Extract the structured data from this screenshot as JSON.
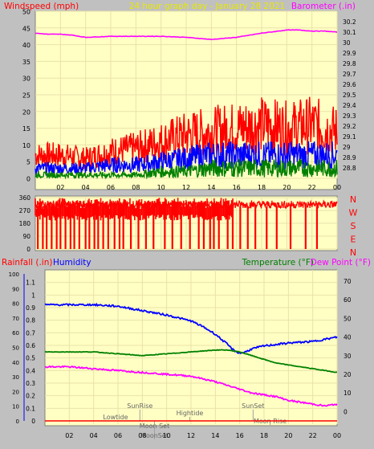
{
  "colors": {
    "background": "#c0c0c0",
    "plot_bg": "#ffffc4",
    "grid": "#e9e2a8",
    "wind": "#ff0000",
    "wind_avg": "#0000ff",
    "wind_low": "#008000",
    "barometer": "#ff00ff",
    "direction": "#ff0000",
    "rainfall": "#ff0000",
    "humidity": "#0000ff",
    "temperature": "#008000",
    "dewpoint": "#ff00ff",
    "tick_text": "#000000"
  },
  "header": {
    "left_label": "Windspeed (mph)",
    "center_label": "24 hour graph day - January 28 2021",
    "right_label": "Barometer (.in)"
  },
  "x_ticks": [
    "02",
    "04",
    "06",
    "08",
    "10",
    "12",
    "14",
    "16",
    "18",
    "20",
    "22",
    "00"
  ],
  "chart_data": [
    {
      "type": "line",
      "title": "24 hour graph day - January 28 2021",
      "xlabel": "",
      "x_range": [
        0,
        24
      ],
      "y_left": {
        "label": "Windspeed (mph)",
        "range": [
          0,
          50
        ],
        "ticks": [
          0,
          5,
          10,
          15,
          20,
          25,
          30,
          35,
          40,
          45,
          50
        ]
      },
      "y_right": {
        "label": "Barometer (.in)",
        "range": [
          28.7,
          30.3
        ],
        "ticks": [
          28.8,
          28.9,
          29,
          29.1,
          29.2,
          29.3,
          29.4,
          29.5,
          29.6,
          29.7,
          29.8,
          29.9,
          30,
          30.1,
          30.2
        ]
      },
      "series": [
        {
          "name": "Windspeed gust",
          "axis": "left",
          "x": [
            0,
            2,
            4,
            6,
            8,
            10,
            12,
            14,
            16,
            18,
            20,
            22,
            24
          ],
          "y": [
            7,
            7,
            6,
            8,
            9,
            11,
            13,
            14,
            15,
            16,
            15,
            16,
            14
          ]
        },
        {
          "name": "Windspeed average",
          "axis": "left",
          "x": [
            0,
            2,
            4,
            6,
            8,
            10,
            12,
            14,
            16,
            18,
            20,
            22,
            24
          ],
          "y": [
            3,
            3,
            3,
            4,
            4,
            5,
            6,
            7,
            7,
            7,
            7,
            7,
            7
          ]
        },
        {
          "name": "Windspeed low",
          "axis": "left",
          "x": [
            0,
            2,
            4,
            6,
            8,
            10,
            12,
            14,
            16,
            18,
            20,
            22,
            24
          ],
          "y": [
            1,
            1,
            1,
            1,
            1,
            2,
            2,
            3,
            3,
            3,
            3,
            3,
            3
          ]
        },
        {
          "name": "Barometer",
          "axis": "right",
          "x": [
            0,
            1,
            2,
            3,
            4,
            6,
            8,
            10,
            12,
            14,
            16,
            18,
            20,
            21,
            22,
            23,
            24
          ],
          "y": [
            30.09,
            30.08,
            30.08,
            30.07,
            30.05,
            30.06,
            30.06,
            30.06,
            30.05,
            30.03,
            30.05,
            30.09,
            30.12,
            30.12,
            30.11,
            30.11,
            30.1
          ]
        }
      ]
    },
    {
      "type": "scatter",
      "title": "",
      "xlabel": "",
      "x_range": [
        0,
        24
      ],
      "y_left": {
        "label": "",
        "range": [
          0,
          360
        ],
        "ticks": [
          0,
          90,
          180,
          270,
          360
        ]
      },
      "y_right_labels": [
        "N",
        "W",
        "S",
        "E",
        "N"
      ],
      "series": [
        {
          "name": "Wind direction",
          "axis": "left",
          "base": 300,
          "drops_x": [
            0.2,
            0.6,
            0.9,
            1.3,
            1.7,
            2.0,
            2.4,
            2.8,
            3.1,
            3.5,
            4.0,
            4.3,
            4.7,
            5.0,
            5.4,
            5.8,
            6.3,
            6.7,
            7.0,
            7.6,
            8.2,
            8.8,
            9.4,
            10.3,
            10.9,
            11.6,
            12.3,
            13.0,
            13.4,
            13.9,
            14.2,
            14.6,
            15.3,
            15.7,
            16.3,
            16.9,
            17.5,
            18.4,
            19.2,
            20.3,
            21.5,
            22.4
          ]
        }
      ]
    },
    {
      "type": "line",
      "title": "",
      "xlabel": "",
      "x_range": [
        0,
        24
      ],
      "y_left_outer": {
        "label": "Rainfall (.in)",
        "range": [
          0,
          1.2
        ],
        "ticks": [
          0,
          0.1,
          0.2,
          0.3,
          0.4,
          0.5,
          0.6,
          0.7,
          0.8,
          0.9,
          1,
          1.1
        ]
      },
      "y_left_inner": {
        "label": "Humidity",
        "range": [
          0,
          100
        ],
        "ticks": [
          0,
          10,
          20,
          30,
          40,
          50,
          60,
          70,
          80,
          90,
          100
        ]
      },
      "y_right": {
        "label_temp": "Temperature (°F)",
        "label_dew": "Dew Point (°F)",
        "range": [
          -5,
          76
        ],
        "ticks": [
          0,
          10,
          20,
          30,
          40,
          50,
          60,
          70
        ]
      },
      "series": [
        {
          "name": "Humidity",
          "axis": "inner",
          "x": [
            0,
            2,
            4,
            6,
            8,
            10,
            12,
            13,
            14,
            15,
            15.5,
            16,
            16.5,
            17,
            18,
            20,
            22,
            24
          ],
          "y": [
            79,
            79,
            79,
            78,
            75,
            72,
            68,
            64,
            59,
            52,
            48,
            46,
            47,
            49,
            51,
            53,
            54,
            57
          ]
        },
        {
          "name": "Temperature",
          "axis": "right",
          "x": [
            0,
            2,
            4,
            6,
            8,
            10,
            12,
            14,
            15,
            16,
            17,
            18,
            19,
            20,
            21,
            22,
            23,
            24
          ],
          "y": [
            32,
            32,
            32,
            31,
            30,
            31,
            32,
            33,
            33,
            32,
            30,
            28,
            26,
            25,
            24,
            23,
            22,
            21
          ]
        },
        {
          "name": "Dew Point",
          "axis": "right",
          "x": [
            0,
            2,
            4,
            6,
            8,
            10,
            12,
            14,
            15,
            16,
            17,
            18,
            19,
            20,
            21,
            22,
            23,
            24
          ],
          "y": [
            24,
            24,
            23,
            22,
            21,
            20,
            19,
            16,
            14,
            12,
            10,
            9,
            8,
            6,
            5,
            4,
            3,
            4
          ]
        },
        {
          "name": "Rainfall",
          "axis": "outer",
          "x": [
            0,
            24
          ],
          "y": [
            0,
            0
          ]
        }
      ],
      "annotations": [
        {
          "text": "Lowtide",
          "x": 5.8
        },
        {
          "text": "SunRise",
          "x": 7.8
        },
        {
          "text": "Moon Set",
          "x": 9.0
        },
        {
          "text": "Hightide",
          "x": 11.9
        },
        {
          "text": "SunSet",
          "x": 17.1
        },
        {
          "text": "Moon Rise",
          "x": 18.5
        },
        {
          "text": "MoonSet",
          "x": 9.0
        }
      ]
    }
  ],
  "lower_header": {
    "rainfall_label": "Rainfall (.in)",
    "humidity_label": "Humidity",
    "temperature_label": "Temperature (°F)",
    "dewpoint_label": "Dew Point (°F)"
  }
}
